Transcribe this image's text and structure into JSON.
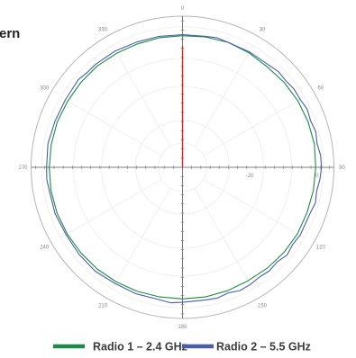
{
  "chart_data": {
    "type": "polar-line",
    "title": "tern",
    "angular_axis": {
      "direction": "clockwise",
      "zero_at": "top",
      "tick_labels": [
        "0",
        "30",
        "60",
        "90",
        "120",
        "150",
        "180",
        "210",
        "240",
        "270",
        "300",
        "330"
      ]
    },
    "radial_axis": {
      "range_db": [
        -40,
        5
      ],
      "tick_labels": [
        {
          "value": -20,
          "label": "-20"
        },
        {
          "value": 0,
          "label": "0"
        }
      ]
    },
    "grid": true,
    "legend_placement": "bottom",
    "marker": {
      "angle": 0,
      "value": -4,
      "color": "#e02424"
    },
    "series": [
      {
        "name": "Radio 1 – 2.4 GHz",
        "color": "#1e8a45",
        "points": [
          [
            0,
            -0.8
          ],
          [
            10,
            -0.6
          ],
          [
            20,
            -0.4
          ],
          [
            30,
            -0.6
          ],
          [
            40,
            -0.9
          ],
          [
            50,
            -0.6
          ],
          [
            60,
            -0.4
          ],
          [
            70,
            -0.3
          ],
          [
            80,
            -0.2
          ],
          [
            90,
            -0.4
          ],
          [
            100,
            -0.5
          ],
          [
            110,
            -0.6
          ],
          [
            120,
            -0.5
          ],
          [
            130,
            -0.6
          ],
          [
            140,
            -0.8
          ],
          [
            150,
            -1.0
          ],
          [
            160,
            -0.9
          ],
          [
            170,
            -0.8
          ],
          [
            180,
            -0.8
          ],
          [
            190,
            -0.8
          ],
          [
            200,
            -0.7
          ],
          [
            210,
            -0.6
          ],
          [
            220,
            -0.5
          ],
          [
            230,
            -0.5
          ],
          [
            240,
            -0.4
          ],
          [
            250,
            -0.3
          ],
          [
            260,
            -0.3
          ],
          [
            270,
            -0.4
          ],
          [
            280,
            -0.4
          ],
          [
            290,
            -0.4
          ],
          [
            300,
            -0.6
          ],
          [
            310,
            -0.6
          ],
          [
            320,
            -0.6
          ],
          [
            330,
            -0.8
          ],
          [
            340,
            -0.9
          ],
          [
            350,
            -0.8
          ]
        ]
      },
      {
        "name": "Radio 2 – 5.5 GHz",
        "color": "#4a5ea8",
        "points": [
          [
            0,
            -0.5
          ],
          [
            10,
            -0.4
          ],
          [
            15,
            -0.1
          ],
          [
            20,
            -0.4
          ],
          [
            30,
            -0.3
          ],
          [
            40,
            -0.2
          ],
          [
            45,
            0.3
          ],
          [
            50,
            0.1
          ],
          [
            55,
            0.5
          ],
          [
            60,
            0.4
          ],
          [
            65,
            0.9
          ],
          [
            70,
            0.5
          ],
          [
            75,
            1.0
          ],
          [
            80,
            0.6
          ],
          [
            85,
            1.2
          ],
          [
            90,
            1.3
          ],
          [
            95,
            1.0
          ],
          [
            100,
            0.5
          ],
          [
            105,
            0.9
          ],
          [
            110,
            0.3
          ],
          [
            120,
            0.4
          ],
          [
            125,
            0.0
          ],
          [
            130,
            0.6
          ],
          [
            135,
            -0.2
          ],
          [
            140,
            0.2
          ],
          [
            145,
            -0.1
          ],
          [
            150,
            0.3
          ],
          [
            155,
            0.5
          ],
          [
            160,
            -0.2
          ],
          [
            165,
            0.3
          ],
          [
            170,
            0.1
          ],
          [
            180,
            0.2
          ],
          [
            185,
            0.5
          ],
          [
            190,
            0.0
          ],
          [
            200,
            0.1
          ],
          [
            210,
            0.0
          ],
          [
            220,
            0.4
          ],
          [
            230,
            0.2
          ],
          [
            240,
            0.0
          ],
          [
            250,
            0.3
          ],
          [
            260,
            0.2
          ],
          [
            265,
            0.5
          ],
          [
            270,
            0.4
          ],
          [
            280,
            0.6
          ],
          [
            290,
            0.3
          ],
          [
            300,
            0.2
          ],
          [
            310,
            0.5
          ],
          [
            315,
            0.0
          ],
          [
            320,
            0.1
          ],
          [
            330,
            0.0
          ],
          [
            340,
            -0.3
          ],
          [
            350,
            -0.4
          ]
        ]
      }
    ]
  }
}
